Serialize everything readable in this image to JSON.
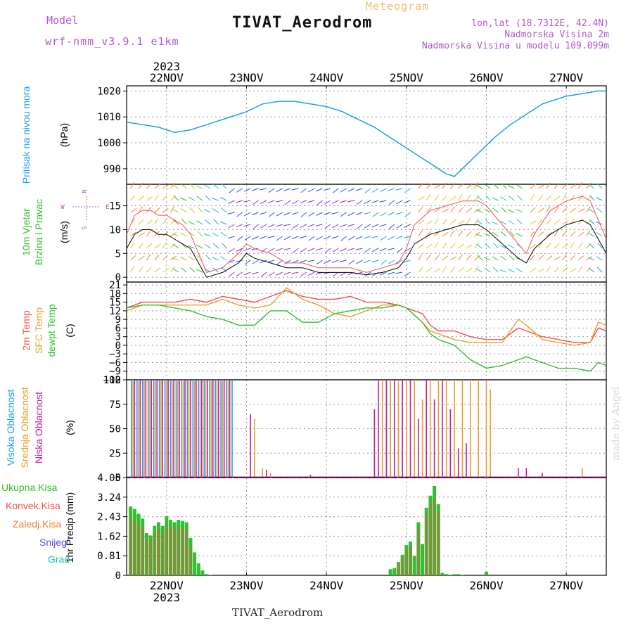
{
  "header": {
    "model_label": "Model",
    "model_name": "wrf-nmm_v3.9.1 e1km",
    "title_top": "Meteogram",
    "station": "TIVAT_Aerodrom",
    "lonlat": "lon,lat (18.7312E, 42.4N)",
    "altitude": "Nadmorska Visina 2m",
    "model_altitude": "Nadmorska Visina u modelu 109.099m"
  },
  "footer": {
    "station": "TIVAT_Aerodrom"
  },
  "credit": "made by Angel",
  "x_axis": {
    "year": "2023",
    "day_labels": [
      "22NOV",
      "23NOV",
      "24NOV",
      "25NOV",
      "26NOV",
      "27NOV"
    ],
    "day_positions": [
      1,
      2,
      3,
      4,
      5,
      6
    ],
    "range": [
      0.5,
      6.5
    ]
  },
  "colors": {
    "pressure": "#1ea0e6",
    "temp2m": "#f05050",
    "sfctemp": "#e6a030",
    "dewpt": "#30c030",
    "cloud_high": "#1ea0e6",
    "cloud_mid": "#e6a030",
    "cloud_low": "#c020a0",
    "precip_total": "#30c030",
    "precip_conv": "#f05050",
    "precip_frz": "#f08030",
    "snow": "#5050e0",
    "hail": "#20c0c0",
    "axis_purple": "#b05ad0"
  },
  "chart_data": [
    {
      "type": "line",
      "panel": "pressure",
      "ylabel_main": "Pritisak na nivou mora",
      "ylabel_unit": "(hPa)",
      "ylim": [
        984,
        1022
      ],
      "yticks": [
        990,
        1000,
        1010,
        1020
      ],
      "grid": true,
      "series": [
        {
          "name": "Pritisak na nivou mora",
          "x": [
            0.5,
            0.7,
            0.9,
            1.0,
            1.1,
            1.3,
            1.5,
            1.7,
            1.9,
            2.0,
            2.2,
            2.4,
            2.6,
            2.8,
            3.0,
            3.2,
            3.4,
            3.6,
            3.8,
            4.0,
            4.2,
            4.3,
            4.5,
            4.6,
            4.7,
            4.9,
            5.1,
            5.3,
            5.5,
            5.7,
            5.9,
            6.0,
            6.2,
            6.4,
            6.5
          ],
          "y": [
            1008,
            1007,
            1006,
            1005,
            1004,
            1005,
            1007,
            1009,
            1011,
            1012,
            1015,
            1016,
            1016,
            1015,
            1014,
            1012,
            1009,
            1006,
            1002,
            998,
            994,
            992,
            988,
            987,
            990,
            996,
            1002,
            1007,
            1011,
            1015,
            1017,
            1018,
            1019,
            1020,
            1020
          ]
        }
      ]
    },
    {
      "type": "line",
      "panel": "wind",
      "ylabel_main": "10m Vjetar",
      "ylabel_sub": "Brzina i Pravac",
      "ylabel_unit": "(m/s)",
      "compass": [
        "N",
        "E",
        "S",
        "W"
      ],
      "ylim": [
        -1,
        19.5
      ],
      "yticks": [
        0,
        5,
        10,
        15
      ],
      "grid": true,
      "series": [
        {
          "name": "Vjetar",
          "x": [
            0.5,
            0.6,
            0.7,
            0.8,
            0.9,
            1.0,
            1.1,
            1.2,
            1.3,
            1.4,
            1.5,
            1.7,
            1.9,
            2.0,
            2.1,
            2.3,
            2.5,
            2.7,
            2.9,
            3.1,
            3.3,
            3.5,
            3.7,
            3.9,
            4.0,
            4.1,
            4.3,
            4.5,
            4.7,
            4.8,
            4.9,
            5.0,
            5.2,
            5.4,
            5.5,
            5.6,
            5.8,
            6.0,
            6.2,
            6.3,
            6.4,
            6.5
          ],
          "y": [
            6,
            9,
            10,
            10,
            9,
            9,
            8,
            7,
            6,
            3,
            0,
            1,
            3,
            5,
            4,
            3,
            2,
            2,
            1,
            1,
            1,
            0.5,
            1,
            2,
            4,
            7,
            9,
            10,
            11,
            11,
            11,
            10,
            7,
            4,
            3,
            6,
            9,
            11,
            12,
            11,
            8,
            5
          ]
        },
        {
          "name": "Udari",
          "x": [
            0.5,
            0.6,
            0.7,
            0.8,
            0.9,
            1.0,
            1.1,
            1.2,
            1.3,
            1.4,
            1.5,
            1.7,
            1.9,
            2.0,
            2.1,
            2.3,
            2.5,
            2.7,
            2.9,
            3.1,
            3.3,
            3.5,
            3.7,
            3.9,
            4.0,
            4.1,
            4.3,
            4.5,
            4.7,
            4.8,
            4.9,
            5.0,
            5.2,
            5.4,
            5.5,
            5.6,
            5.8,
            6.0,
            6.2,
            6.3,
            6.4,
            6.5
          ],
          "y": [
            9,
            13,
            14,
            14,
            13,
            13,
            12,
            11,
            9,
            5,
            1,
            2,
            5,
            7,
            6,
            5,
            3,
            3,
            2,
            2,
            2,
            1,
            2,
            3,
            6,
            11,
            14,
            15,
            16,
            16,
            16,
            15,
            11,
            7,
            5,
            9,
            14,
            16,
            17,
            16,
            12,
            8
          ]
        }
      ]
    },
    {
      "type": "line",
      "panel": "temperature",
      "ylabel_lines": [
        "2m Temp",
        "SFC Temp",
        "dewpt Temp"
      ],
      "ylabel_unit": "(C)",
      "ylim": [
        -12,
        22
      ],
      "yticks": [
        -12,
        -9,
        -6,
        -3,
        0,
        3,
        6,
        9,
        12,
        15,
        18,
        21
      ],
      "grid": true,
      "series": [
        {
          "name": "2m Temp",
          "x": [
            0.5,
            0.7,
            0.9,
            1.1,
            1.3,
            1.5,
            1.7,
            1.9,
            2.1,
            2.3,
            2.5,
            2.7,
            2.9,
            3.1,
            3.3,
            3.5,
            3.7,
            3.9,
            4.0,
            4.2,
            4.3,
            4.4,
            4.6,
            4.8,
            5.0,
            5.2,
            5.4,
            5.5,
            5.7,
            5.9,
            6.1,
            6.3,
            6.4,
            6.5
          ],
          "y": [
            13,
            15,
            15,
            15,
            16,
            15,
            17,
            16,
            15,
            17,
            19,
            17,
            16,
            16,
            17,
            15,
            15,
            14,
            13,
            11,
            7,
            5,
            5,
            3,
            2,
            2,
            6,
            5,
            3,
            2,
            1,
            1,
            6,
            5
          ]
        },
        {
          "name": "SFC Temp",
          "x": [
            0.5,
            0.7,
            0.9,
            1.1,
            1.3,
            1.5,
            1.7,
            1.9,
            2.1,
            2.3,
            2.5,
            2.7,
            2.9,
            3.1,
            3.3,
            3.5,
            3.7,
            3.9,
            4.0,
            4.2,
            4.3,
            4.4,
            4.6,
            4.8,
            5.0,
            5.2,
            5.4,
            5.5,
            5.7,
            5.9,
            6.1,
            6.3,
            6.4,
            6.5
          ],
          "y": [
            12,
            14,
            14,
            14,
            14,
            14,
            16,
            14,
            13,
            14,
            20,
            16,
            14,
            11,
            10,
            12,
            14,
            14,
            13,
            8,
            5,
            4,
            2,
            1,
            1,
            1,
            9,
            7,
            2,
            1,
            0,
            1,
            8,
            7
          ]
        },
        {
          "name": "dewpt Temp",
          "x": [
            0.5,
            0.7,
            0.9,
            1.1,
            1.3,
            1.5,
            1.7,
            1.9,
            2.1,
            2.3,
            2.5,
            2.7,
            2.9,
            3.1,
            3.3,
            3.5,
            3.7,
            3.9,
            4.0,
            4.2,
            4.3,
            4.4,
            4.6,
            4.8,
            5.0,
            5.2,
            5.4,
            5.5,
            5.7,
            5.9,
            6.1,
            6.3,
            6.4,
            6.5
          ],
          "y": [
            13,
            14,
            14,
            13,
            12,
            10,
            9,
            7,
            7,
            12,
            12,
            8,
            8,
            11,
            12,
            13,
            13,
            14,
            13,
            8,
            4,
            2,
            0,
            -5,
            -8,
            -7,
            -5,
            -4,
            -6,
            -8,
            -8,
            -9,
            -6,
            -7
          ]
        }
      ]
    },
    {
      "type": "bar",
      "panel": "cloud",
      "ylabel_lines": [
        "Visoka Oblacnost",
        "Srednja Oblacnost",
        "Niska Oblacnost"
      ],
      "ylabel_unit": "(%)",
      "ylim": [
        0,
        100
      ],
      "yticks": [
        0,
        25,
        50,
        75,
        100
      ],
      "grid": true,
      "series": [
        {
          "name": "Visoka Oblacnost",
          "x": [
            0.56,
            0.63,
            0.7,
            0.77,
            0.84,
            0.91,
            0.98,
            1.05,
            1.12,
            1.19,
            1.26,
            1.33,
            1.4,
            1.47,
            1.54,
            1.61,
            1.68,
            1.75,
            1.82,
            3.75,
            3.8,
            3.85,
            3.9,
            4.4
          ],
          "y": [
            100,
            100,
            100,
            100,
            100,
            100,
            100,
            100,
            100,
            100,
            100,
            100,
            100,
            100,
            100,
            100,
            100,
            100,
            100,
            100,
            100,
            100,
            50,
            10
          ]
        },
        {
          "name": "Srednja Oblacnost",
          "x": [
            0.58,
            0.65,
            0.72,
            0.79,
            0.86,
            0.93,
            1.0,
            1.07,
            1.14,
            1.21,
            1.28,
            1.35,
            1.42,
            1.49,
            1.56,
            1.63,
            1.7,
            1.77,
            2.1,
            2.2,
            2.3,
            3.7,
            3.8,
            3.9,
            4.0,
            4.1,
            4.2,
            4.3,
            4.4,
            4.5,
            4.6,
            4.7,
            4.8,
            4.9,
            5.0,
            5.05,
            6.2
          ],
          "y": [
            100,
            100,
            100,
            100,
            100,
            100,
            100,
            100,
            100,
            100,
            100,
            100,
            100,
            100,
            100,
            100,
            100,
            100,
            60,
            10,
            5,
            100,
            100,
            100,
            100,
            100,
            80,
            100,
            100,
            100,
            100,
            100,
            100,
            100,
            100,
            90,
            10
          ]
        },
        {
          "name": "Niska Oblacnost",
          "x": [
            0.6,
            0.67,
            0.74,
            0.81,
            0.88,
            0.95,
            1.02,
            1.09,
            1.16,
            1.23,
            1.3,
            1.37,
            1.44,
            1.51,
            1.58,
            1.65,
            1.72,
            1.79,
            2.05,
            2.25,
            2.8,
            3.6,
            3.65,
            3.75,
            3.85,
            3.95,
            4.05,
            4.15,
            4.25,
            4.35,
            4.45,
            4.55,
            4.65,
            4.75,
            5.4,
            5.5,
            5.7
          ],
          "y": [
            100,
            100,
            100,
            100,
            100,
            100,
            100,
            100,
            100,
            100,
            100,
            100,
            100,
            100,
            100,
            100,
            100,
            100,
            65,
            8,
            3,
            70,
            100,
            100,
            100,
            100,
            100,
            60,
            100,
            80,
            100,
            70,
            30,
            35,
            10,
            10,
            5
          ]
        }
      ]
    },
    {
      "type": "bar",
      "panel": "precip",
      "ylabel_main": "1hr Precip",
      "ylabel_unit": "(mm)",
      "legend": [
        "Ukupna Kisa",
        "Konvek.Kisa",
        "Zaledj.Kisa",
        "Snijeg",
        "Grad"
      ],
      "ylim": [
        0,
        4.05
      ],
      "yticks": [
        0,
        0.81,
        1.62,
        2.43,
        3.24,
        4.05
      ],
      "grid": true,
      "series": [
        {
          "name": "Ukupna Kisa",
          "x": [
            0.55,
            0.6,
            0.65,
            0.7,
            0.75,
            0.8,
            0.85,
            0.9,
            0.95,
            1.0,
            1.05,
            1.1,
            1.15,
            1.2,
            1.25,
            1.3,
            1.35,
            1.4,
            1.45,
            1.5,
            1.55,
            3.8,
            3.85,
            3.9,
            3.95,
            4.0,
            4.05,
            4.1,
            4.15,
            4.2,
            4.25,
            4.3,
            4.35,
            4.4,
            4.45,
            4.5,
            4.55,
            4.6,
            4.65,
            4.7,
            5.0
          ],
          "y": [
            2.85,
            2.75,
            2.55,
            2.35,
            1.75,
            1.65,
            2.05,
            2.2,
            2.05,
            2.45,
            2.3,
            2.2,
            2.3,
            2.25,
            2.2,
            1.55,
            0.95,
            0.5,
            0.2,
            0.05,
            0.02,
            0.25,
            0.3,
            0.55,
            0.85,
            1.25,
            1.4,
            0.8,
            2.2,
            1.3,
            2.8,
            3.3,
            3.7,
            2.95,
            0.1,
            0.05,
            0.02,
            0.05,
            0.05,
            0.02,
            0.15
          ]
        },
        {
          "name": "Konvek.Kisa",
          "x": [
            0.55,
            0.6,
            0.65,
            0.7,
            0.75,
            0.8,
            0.85,
            0.9,
            0.95,
            1.0,
            1.05,
            1.1,
            1.15,
            1.2,
            1.25,
            1.3,
            3.9,
            3.95,
            4.0,
            4.05,
            4.15,
            4.25,
            4.3,
            4.35,
            4.4
          ],
          "y": [
            2.4,
            2.3,
            2.15,
            2.0,
            1.55,
            1.45,
            1.8,
            1.95,
            1.8,
            2.2,
            2.0,
            1.95,
            2.0,
            1.95,
            1.9,
            1.2,
            0.45,
            0.7,
            1.05,
            1.2,
            1.95,
            2.5,
            2.95,
            3.2,
            2.65
          ]
        }
      ]
    }
  ]
}
